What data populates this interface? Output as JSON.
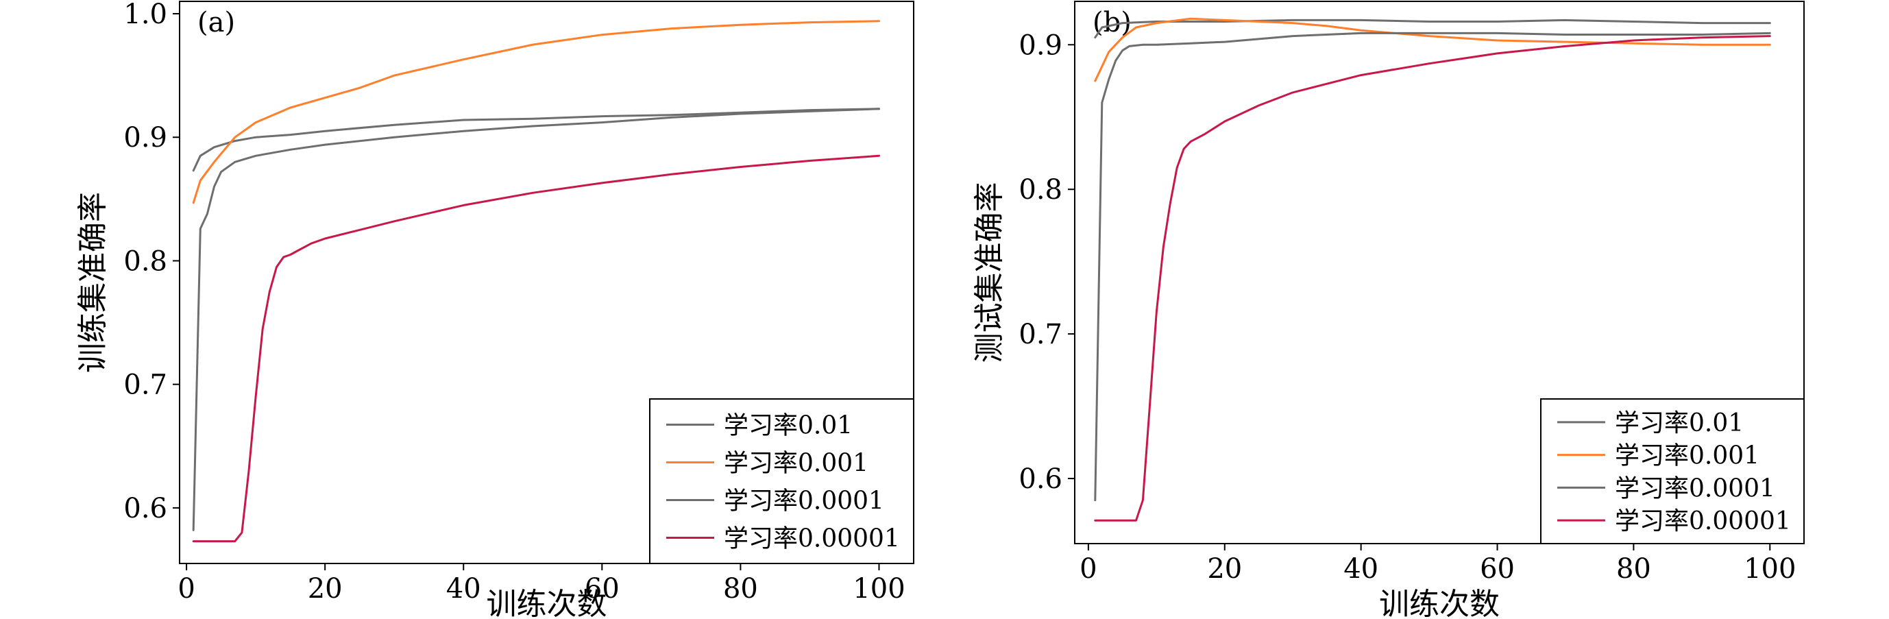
{
  "chart_data": [
    {
      "type": "line",
      "panel_label": "(a)",
      "xlabel": "训练次数",
      "ylabel": "训练集准确率",
      "xlim": [
        -1,
        105
      ],
      "ylim": [
        0.555,
        1.01
      ],
      "xticks": [
        0,
        20,
        40,
        60,
        80,
        100
      ],
      "yticks": [
        0.6,
        0.7,
        0.8,
        0.9,
        1.0
      ],
      "ytick_labels": [
        "0.6",
        "0.7",
        "0.8",
        "0.9",
        "1.0"
      ],
      "legend_position": "bottom-right",
      "series": [
        {
          "name": "学习率0.01",
          "color": "#6e6e6e",
          "x": [
            1,
            2,
            4,
            7,
            10,
            15,
            20,
            30,
            40,
            50,
            60,
            70,
            80,
            90,
            100
          ],
          "y": [
            0.873,
            0.885,
            0.892,
            0.897,
            0.9,
            0.902,
            0.905,
            0.91,
            0.914,
            0.915,
            0.917,
            0.918,
            0.92,
            0.922,
            0.923
          ]
        },
        {
          "name": "学习率0.001",
          "color": "#ff7f2a",
          "x": [
            1,
            2,
            4,
            7,
            10,
            15,
            20,
            25,
            30,
            40,
            50,
            60,
            70,
            80,
            90,
            100
          ],
          "y": [
            0.847,
            0.865,
            0.88,
            0.9,
            0.912,
            0.924,
            0.932,
            0.94,
            0.95,
            0.963,
            0.975,
            0.983,
            0.988,
            0.991,
            0.993,
            0.994
          ]
        },
        {
          "name": "学习率0.0001",
          "color": "#6e6e6e",
          "x": [
            1,
            2,
            3,
            4,
            5,
            7,
            10,
            15,
            20,
            30,
            40,
            50,
            60,
            70,
            80,
            90,
            100
          ],
          "y": [
            0.582,
            0.826,
            0.838,
            0.86,
            0.872,
            0.88,
            0.885,
            0.89,
            0.894,
            0.9,
            0.905,
            0.909,
            0.912,
            0.916,
            0.919,
            0.921,
            0.923
          ]
        },
        {
          "name": "学习率0.00001",
          "color": "#c8184a",
          "x": [
            1,
            3,
            5,
            7,
            8,
            9,
            10,
            11,
            12,
            13,
            14,
            15,
            16,
            18,
            20,
            25,
            30,
            40,
            50,
            60,
            70,
            80,
            90,
            100
          ],
          "y": [
            0.573,
            0.573,
            0.573,
            0.573,
            0.58,
            0.63,
            0.69,
            0.745,
            0.775,
            0.795,
            0.803,
            0.805,
            0.808,
            0.814,
            0.818,
            0.825,
            0.832,
            0.845,
            0.855,
            0.863,
            0.87,
            0.876,
            0.881,
            0.885
          ]
        }
      ]
    },
    {
      "type": "line",
      "panel_label": "(b)",
      "xlabel": "训练次数",
      "ylabel": "测试集准确率",
      "xlim": [
        -2,
        105
      ],
      "ylim": [
        0.555,
        0.93
      ],
      "xticks": [
        0,
        20,
        40,
        60,
        80,
        100
      ],
      "yticks": [
        0.6,
        0.7,
        0.8,
        0.9
      ],
      "ytick_labels": [
        "0.6",
        "0.7",
        "0.8",
        "0.9"
      ],
      "legend_position": "bottom-right",
      "series": [
        {
          "name": "学习率0.01",
          "color": "#6e6e6e",
          "x": [
            1,
            2,
            5,
            10,
            20,
            30,
            40,
            50,
            60,
            70,
            80,
            90,
            100
          ],
          "y": [
            0.905,
            0.912,
            0.915,
            0.916,
            0.916,
            0.917,
            0.917,
            0.916,
            0.916,
            0.917,
            0.916,
            0.915,
            0.915
          ]
        },
        {
          "name": "学习率0.001",
          "color": "#ff7f2a",
          "x": [
            1,
            2,
            3,
            5,
            7,
            10,
            15,
            20,
            25,
            30,
            35,
            40,
            50,
            60,
            70,
            80,
            90,
            100
          ],
          "y": [
            0.875,
            0.885,
            0.895,
            0.905,
            0.912,
            0.915,
            0.918,
            0.917,
            0.916,
            0.915,
            0.913,
            0.91,
            0.906,
            0.903,
            0.902,
            0.901,
            0.9,
            0.9
          ]
        },
        {
          "name": "学习率0.0001",
          "color": "#6e6e6e",
          "x": [
            1,
            2,
            3,
            4,
            5,
            6,
            8,
            10,
            15,
            20,
            30,
            40,
            50,
            60,
            70,
            80,
            90,
            100
          ],
          "y": [
            0.585,
            0.86,
            0.876,
            0.889,
            0.896,
            0.899,
            0.9,
            0.9,
            0.901,
            0.902,
            0.906,
            0.908,
            0.908,
            0.908,
            0.907,
            0.907,
            0.907,
            0.908
          ]
        },
        {
          "name": "学习率0.00001",
          "color": "#c8184a",
          "x": [
            1,
            3,
            5,
            7,
            8,
            9,
            10,
            11,
            12,
            13,
            14,
            15,
            17,
            20,
            25,
            30,
            40,
            50,
            60,
            70,
            80,
            90,
            100
          ],
          "y": [
            0.571,
            0.571,
            0.571,
            0.571,
            0.585,
            0.65,
            0.715,
            0.76,
            0.79,
            0.815,
            0.828,
            0.833,
            0.838,
            0.847,
            0.858,
            0.867,
            0.879,
            0.887,
            0.894,
            0.899,
            0.903,
            0.905,
            0.906
          ]
        }
      ]
    }
  ]
}
